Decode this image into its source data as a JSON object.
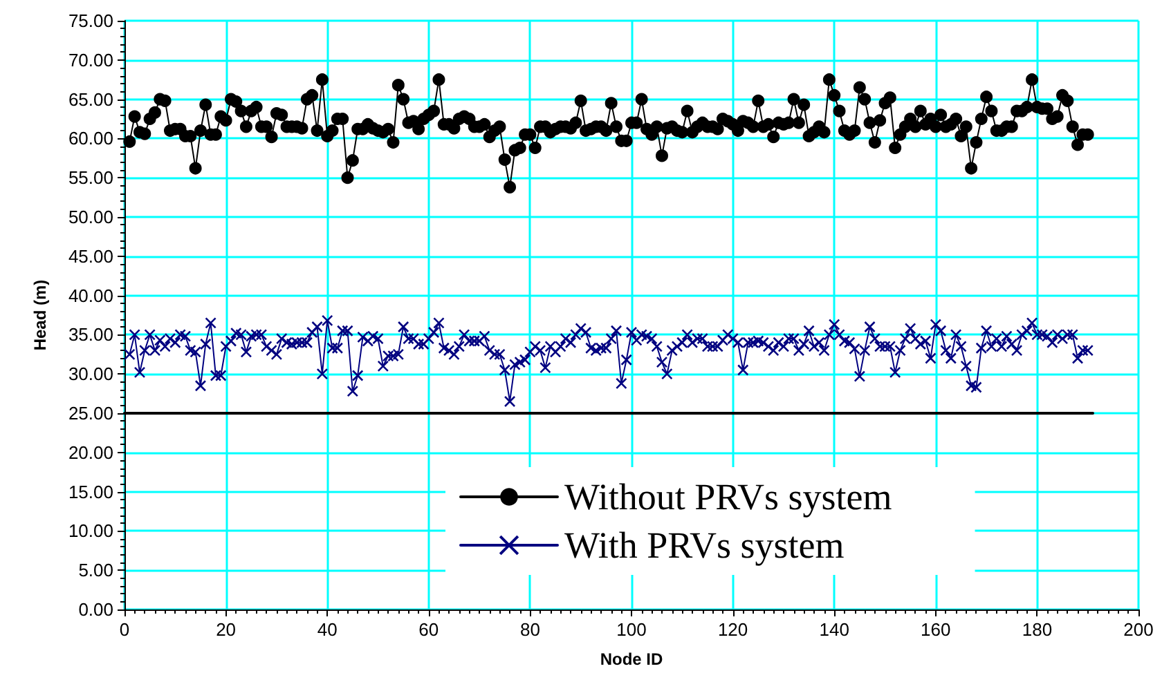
{
  "chart_data": {
    "type": "line",
    "xlabel": "Node ID",
    "ylabel": "Head (m)",
    "x": [
      1,
      2,
      3,
      4,
      5,
      6,
      7,
      8,
      9,
      10,
      11,
      12,
      13,
      14,
      15,
      16,
      17,
      18,
      19,
      20,
      21,
      22,
      23,
      24,
      25,
      26,
      27,
      28,
      29,
      30,
      31,
      32,
      33,
      34,
      35,
      36,
      37,
      38,
      39,
      40,
      41,
      42,
      43,
      44,
      45,
      46,
      47,
      48,
      49,
      50,
      51,
      52,
      53,
      54,
      55,
      56,
      57,
      58,
      59,
      60,
      61,
      62,
      63,
      64,
      65,
      66,
      67,
      68,
      69,
      70,
      71,
      72,
      73,
      74,
      75,
      76,
      77,
      78,
      79,
      80,
      81,
      82,
      83,
      84,
      85,
      86,
      87,
      88,
      89,
      90,
      91,
      92,
      93,
      94,
      95,
      96,
      97,
      98,
      99,
      100,
      101,
      102,
      103,
      104,
      105,
      106,
      107,
      108,
      109,
      110,
      111,
      112,
      113,
      114,
      115,
      116,
      117,
      118,
      119,
      120,
      121,
      122,
      123,
      124,
      125,
      126,
      127,
      128,
      129,
      130,
      131,
      132,
      133,
      134,
      135,
      136,
      137,
      138,
      139,
      140,
      141,
      142,
      143,
      144,
      145,
      146,
      147,
      148,
      149,
      150,
      151,
      152,
      153,
      154,
      155,
      156,
      157,
      158,
      159,
      160,
      161,
      162,
      163,
      164,
      165,
      166,
      167,
      168,
      169,
      170,
      171,
      172,
      173,
      174,
      175,
      176,
      177,
      178,
      179,
      180,
      181,
      182,
      183,
      184,
      185,
      186,
      187,
      188,
      189,
      190
    ],
    "series": [
      {
        "name": "Without PRVs system",
        "color": "#000000",
        "marker": "circle",
        "values": [
          59.6,
          62.8,
          60.8,
          60.6,
          62.5,
          63.3,
          65,
          64.8,
          61,
          61.2,
          61.2,
          60.3,
          60.3,
          56.2,
          61,
          64.3,
          60.5,
          60.5,
          62.8,
          62.3,
          65,
          64.7,
          63.5,
          61.5,
          63.5,
          64,
          61.5,
          61.5,
          60.2,
          63.2,
          63,
          61.5,
          61.5,
          61.5,
          61.3,
          65,
          65.5,
          61,
          67.5,
          60.3,
          61,
          62.5,
          62.5,
          55,
          57.2,
          61.2,
          61.2,
          61.8,
          61.3,
          61,
          60.8,
          61.2,
          59.5,
          66.8,
          65,
          62,
          62.2,
          61.2,
          62.5,
          63,
          63.5,
          67.5,
          61.8,
          61.8,
          61.3,
          62.5,
          62.8,
          62.5,
          61.5,
          61.5,
          61.8,
          60.2,
          61,
          61.5,
          57.3,
          53.8,
          58.5,
          58.8,
          60.5,
          60.5,
          58.8,
          61.5,
          61.5,
          60.8,
          61.2,
          61.5,
          61.5,
          61.3,
          62,
          64.8,
          61,
          61.2,
          61.5,
          61.5,
          61,
          64.5,
          61.5,
          59.7,
          59.7,
          62,
          62,
          65,
          61.2,
          60.5,
          61.5,
          57.8,
          61.3,
          61.5,
          61,
          60.8,
          63.5,
          60.8,
          61.5,
          62,
          61.5,
          61.5,
          61.2,
          62.5,
          62.2,
          61.8,
          61,
          62.2,
          62,
          61.5,
          64.8,
          61.5,
          61.8,
          60.2,
          62,
          61.8,
          62,
          65,
          62,
          64.3,
          60.3,
          60.8,
          61.5,
          60.8,
          67.5,
          65.5,
          63.5,
          61,
          60.5,
          61,
          66.5,
          65,
          62,
          59.5,
          62.3,
          64.5,
          65.2,
          58.8,
          60.5,
          61.5,
          62.5,
          61.5,
          63.5,
          61.8,
          62.5,
          61.5,
          63,
          61.5,
          61.8,
          62.5,
          60.3,
          61.5,
          56.2,
          59.5,
          62.5,
          65.3,
          63.5,
          61,
          61,
          61.5,
          61.5,
          63.5,
          63.5,
          64,
          67.5,
          64,
          63.8,
          63.8,
          62.5,
          62.8,
          65.5,
          64.8,
          61.5,
          59.2,
          60.5,
          60.5
        ]
      },
      {
        "name": "With PRVs system",
        "color": "#000080",
        "marker": "cross",
        "values": [
          32.5,
          35,
          30.2,
          33,
          35,
          33,
          34.3,
          33.5,
          34.5,
          34,
          35,
          34.8,
          33,
          32.8,
          28.5,
          33.8,
          36.5,
          29.8,
          29.8,
          33.5,
          34.2,
          35.2,
          35,
          32.8,
          34.8,
          35,
          35,
          33.5,
          33,
          32.5,
          34.5,
          34,
          33.8,
          34,
          34,
          34,
          35.3,
          36,
          30,
          36.8,
          33.3,
          33.3,
          35.5,
          35.5,
          27.8,
          29.8,
          34.7,
          34.2,
          34.8,
          34.5,
          31,
          32.3,
          32.3,
          32.5,
          36,
          34.5,
          34.5,
          33.8,
          33.8,
          34.5,
          35.3,
          36.5,
          33.3,
          33,
          32.5,
          33.5,
          35,
          34.2,
          34.2,
          34.2,
          34.8,
          33,
          32.5,
          32.5,
          30.5,
          26.5,
          31.2,
          31.5,
          31.8,
          32.8,
          33.5,
          33,
          30.8,
          33.5,
          32.8,
          33.5,
          34.5,
          34,
          35,
          35.8,
          35.3,
          33.3,
          33,
          33.3,
          33.3,
          34.5,
          35.5,
          28.8,
          31.8,
          35.3,
          34.3,
          35,
          34.8,
          34.5,
          33.5,
          31.5,
          30,
          33,
          33.5,
          34,
          35,
          34,
          34.5,
          34.5,
          33.5,
          33.5,
          33.5,
          34.3,
          35,
          34.5,
          34,
          30.5,
          34,
          34,
          34.2,
          34,
          33.5,
          33,
          34,
          33.5,
          34.5,
          34.5,
          33,
          33.8,
          35.5,
          33.5,
          34,
          33,
          35,
          36.3,
          35,
          34.2,
          34,
          33.2,
          29.7,
          33,
          36,
          34.5,
          33.5,
          33.5,
          33.5,
          30.2,
          33,
          34.5,
          35.8,
          34.5,
          33.8,
          34.2,
          32,
          36.3,
          35.5,
          33,
          32,
          35,
          33.5,
          31,
          28.5,
          28.3,
          33.3,
          35.5,
          33.5,
          34.5,
          33.5,
          34.8,
          33.8,
          33,
          35,
          35.5,
          36.5,
          35,
          35,
          34.8,
          34,
          35,
          34.5,
          35,
          35,
          32,
          33,
          33
        ]
      },
      {
        "color": "#000000",
        "marker": "none",
        "x": [
          0,
          191
        ],
        "values": [
          25,
          25
        ]
      }
    ],
    "xlim": [
      0,
      200
    ],
    "xticks": [
      0,
      20,
      40,
      60,
      80,
      100,
      120,
      140,
      160,
      180,
      200
    ],
    "ylim": [
      0,
      75
    ],
    "yticks": [
      {
        "value": 0,
        "label": "0.00"
      },
      {
        "value": 5,
        "label": "5.00"
      },
      {
        "value": 10,
        "label": "10.00"
      },
      {
        "value": 15,
        "label": "15.00"
      },
      {
        "value": 20,
        "label": "20.00"
      },
      {
        "value": 25,
        "label": "25.00"
      },
      {
        "value": 30,
        "label": "30.00"
      },
      {
        "value": 35,
        "label": "35.00"
      },
      {
        "value": 40,
        "label": "40.00"
      },
      {
        "value": 45,
        "label": "45.00"
      },
      {
        "value": 50,
        "label": "50.00"
      },
      {
        "value": 55,
        "label": "55.00"
      },
      {
        "value": 60,
        "label": "60.00"
      },
      {
        "value": 65,
        "label": "65.00"
      },
      {
        "value": 70,
        "label": "70.00"
      },
      {
        "value": 75,
        "label": "75.00"
      }
    ],
    "grid": true,
    "legend": "bottom"
  }
}
